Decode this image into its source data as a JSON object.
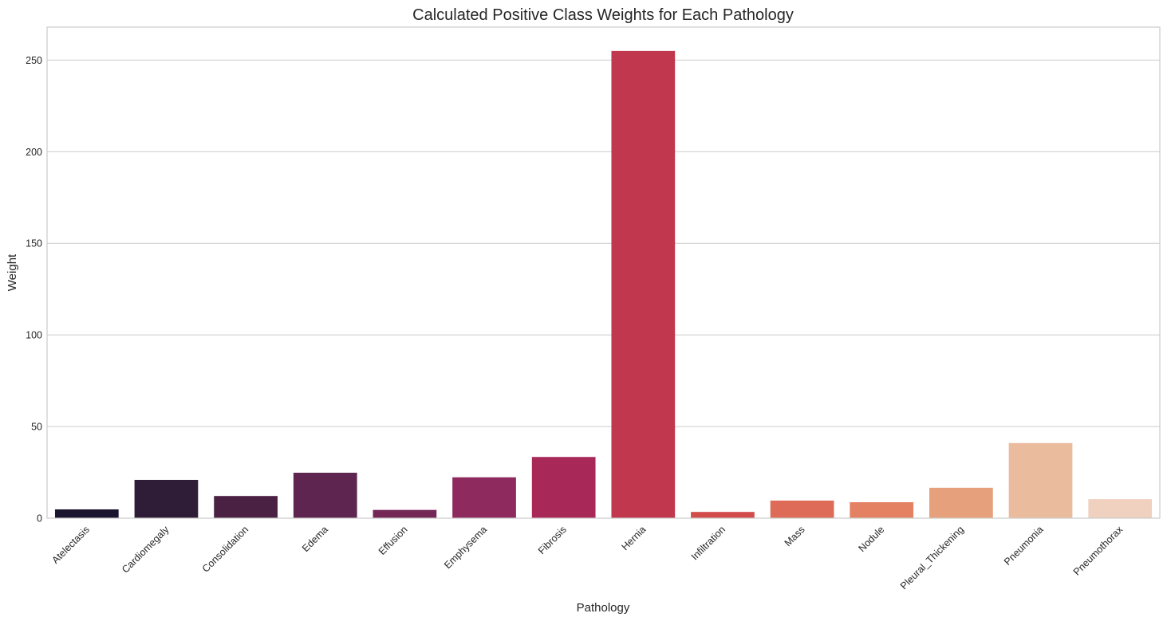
{
  "chart_data": {
    "type": "bar",
    "title": "Calculated Positive Class Weights for Each Pathology",
    "xlabel": "Pathology",
    "ylabel": "Weight",
    "ylim": [
      0,
      268
    ],
    "yticks": [
      0,
      50,
      100,
      150,
      200,
      250
    ],
    "grid": "horizontal",
    "categories": [
      "Atelectasis",
      "Cardiomegaly",
      "Consolidation",
      "Edema",
      "Effusion",
      "Emphysema",
      "Fibrosis",
      "Hernia",
      "Infiltration",
      "Mass",
      "Nodule",
      "Pleural_Thickening",
      "Pneumonia",
      "Pneumothorax"
    ],
    "values": [
      4.8,
      20.9,
      12.1,
      24.8,
      4.5,
      22.3,
      33.4,
      255.0,
      3.4,
      9.6,
      8.7,
      16.6,
      41.0,
      10.4
    ],
    "colors": [
      "#1c1530",
      "#2f1d38",
      "#4a2143",
      "#5e2550",
      "#742757",
      "#8e2a5d",
      "#a82857",
      "#c0374e",
      "#d14c4a",
      "#dd6b57",
      "#e38162",
      "#e6a07b",
      "#eabb9d",
      "#f0d1bf"
    ]
  }
}
